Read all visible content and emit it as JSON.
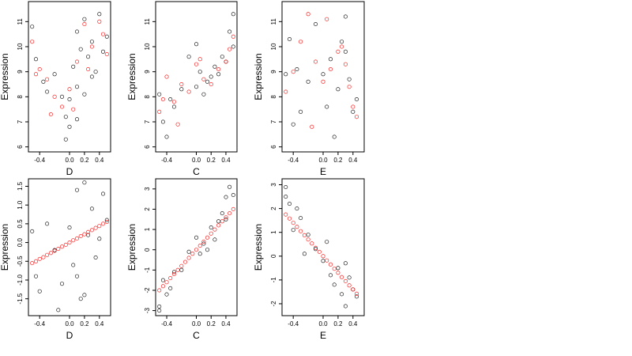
{
  "colors": {
    "observed": "#000000",
    "fitted": "#ff0000"
  },
  "chart_data": [
    {
      "type": "scatter",
      "xlabel": "D",
      "ylabel": "Expression",
      "xlim": [
        -0.55,
        0.55
      ],
      "ylim": [
        5.8,
        11.8
      ],
      "xticks": [
        -0.4,
        0.0,
        0.2,
        0.4
      ],
      "xtick_labels": [
        "-0.4",
        "0.0",
        "0.2",
        "0.4"
      ],
      "yticks": [
        6,
        7,
        8,
        9,
        10,
        11
      ],
      "ytick_labels": [
        "6",
        "7",
        "8",
        "9",
        "10",
        "11"
      ],
      "series": [
        {
          "role": "observed",
          "x": [
            -0.5,
            -0.45,
            -0.35,
            -0.3,
            -0.2,
            -0.1,
            -0.05,
            0.0,
            0.05,
            0.1,
            0.1,
            0.15,
            0.2,
            0.25,
            0.3,
            0.35,
            0.4,
            0.45,
            0.5,
            -0.05,
            0.0,
            0.1,
            0.2,
            0.3
          ],
          "y": [
            10.8,
            9.5,
            8.6,
            8.2,
            8.9,
            8.0,
            7.2,
            7.9,
            9.2,
            10.6,
            8.4,
            9.9,
            11.1,
            9.6,
            10.2,
            9.0,
            11.3,
            9.8,
            10.4,
            6.3,
            6.8,
            7.1,
            8.1,
            8.8
          ]
        },
        {
          "role": "fitted",
          "x": [
            -0.5,
            -0.4,
            -0.3,
            -0.2,
            -0.1,
            0.0,
            0.1,
            0.2,
            0.3,
            0.4,
            0.5,
            -0.45,
            -0.25,
            0.05,
            0.25,
            0.45
          ],
          "y": [
            10.2,
            9.1,
            8.7,
            8.0,
            7.6,
            8.3,
            9.4,
            10.9,
            10.0,
            11.0,
            9.7,
            8.9,
            7.3,
            7.5,
            9.1,
            10.5
          ]
        }
      ]
    },
    {
      "type": "scatter",
      "xlabel": "C",
      "ylabel": "Expression",
      "xlim": [
        -0.55,
        0.55
      ],
      "ylim": [
        5.8,
        11.8
      ],
      "xticks": [
        -0.4,
        0.0,
        0.2,
        0.4
      ],
      "xtick_labels": [
        "-0.4",
        "0.0",
        "0.2",
        "0.4"
      ],
      "yticks": [
        6,
        7,
        8,
        9,
        10,
        11
      ],
      "ytick_labels": [
        "6",
        "7",
        "8",
        "9",
        "10",
        "11"
      ],
      "series": [
        {
          "role": "observed",
          "x": [
            -0.5,
            -0.45,
            -0.4,
            -0.3,
            -0.2,
            -0.1,
            0.0,
            0.0,
            0.05,
            0.1,
            0.2,
            0.25,
            0.3,
            0.35,
            0.4,
            0.45,
            0.5,
            0.5,
            -0.35,
            0.15
          ],
          "y": [
            8.1,
            7.0,
            6.4,
            7.6,
            8.3,
            9.6,
            10.1,
            8.4,
            9.0,
            8.1,
            8.8,
            9.2,
            8.9,
            9.6,
            9.4,
            10.6,
            11.3,
            10.0,
            7.9,
            8.6
          ]
        },
        {
          "role": "fitted",
          "x": [
            -0.5,
            -0.45,
            -0.4,
            -0.3,
            -0.2,
            -0.1,
            0.0,
            0.1,
            0.2,
            0.3,
            0.4,
            0.45,
            0.5,
            -0.25,
            0.05
          ],
          "y": [
            7.4,
            7.9,
            8.8,
            7.8,
            8.5,
            8.2,
            9.3,
            8.7,
            8.5,
            9.1,
            9.4,
            9.9,
            10.4,
            6.9,
            9.5
          ]
        }
      ]
    },
    {
      "type": "scatter",
      "xlabel": "E",
      "ylabel": "Expression",
      "xlim": [
        -0.55,
        0.55
      ],
      "ylim": [
        5.8,
        11.8
      ],
      "xticks": [
        -0.4,
        0.0,
        0.2,
        0.4
      ],
      "xtick_labels": [
        "-0.4",
        "0.0",
        "0.2",
        "0.4"
      ],
      "yticks": [
        6,
        7,
        8,
        9,
        10,
        11
      ],
      "ytick_labels": [
        "6",
        "7",
        "8",
        "9",
        "10",
        "11"
      ],
      "series": [
        {
          "role": "observed",
          "x": [
            -0.5,
            -0.45,
            -0.35,
            -0.3,
            -0.2,
            -0.1,
            0.0,
            0.05,
            0.1,
            0.2,
            0.25,
            0.3,
            0.35,
            0.4,
            0.45,
            -0.4,
            0.15,
            0.3
          ],
          "y": [
            8.9,
            10.3,
            9.1,
            7.4,
            8.6,
            10.9,
            8.9,
            7.6,
            9.5,
            8.3,
            10.2,
            11.2,
            8.7,
            7.4,
            7.9,
            6.9,
            6.4,
            9.8
          ]
        },
        {
          "role": "fitted",
          "x": [
            -0.5,
            -0.4,
            -0.3,
            -0.2,
            -0.1,
            0.0,
            0.1,
            0.2,
            0.25,
            0.3,
            0.35,
            0.4,
            0.45,
            -0.15,
            0.05
          ],
          "y": [
            8.2,
            9.0,
            10.2,
            11.3,
            9.4,
            8.6,
            9.1,
            9.8,
            10.0,
            9.3,
            8.4,
            7.6,
            7.2,
            6.8,
            11.1
          ]
        }
      ]
    },
    {
      "type": "scatter",
      "xlabel": "D",
      "ylabel": "Expression",
      "xlim": [
        -0.55,
        0.55
      ],
      "ylim": [
        -1.95,
        1.7
      ],
      "xticks": [
        -0.4,
        0.0,
        0.2,
        0.4
      ],
      "xtick_labels": [
        "-0.4",
        "0.0",
        "0.2",
        "0.4"
      ],
      "yticks": [
        -1.5,
        -1.0,
        -0.5,
        0.0,
        0.5,
        1.0,
        1.5
      ],
      "ytick_labels": [
        "-1.5",
        "-1.0",
        "-0.5",
        "0.0",
        "0.5",
        "1.0",
        "1.5"
      ],
      "series": [
        {
          "role": "observed",
          "x": [
            -0.5,
            -0.45,
            -0.4,
            -0.3,
            -0.2,
            -0.1,
            0.0,
            0.05,
            0.1,
            0.15,
            0.2,
            0.25,
            0.3,
            0.35,
            0.4,
            0.45,
            0.5,
            -0.15,
            0.1,
            0.2
          ],
          "y": [
            0.3,
            -0.9,
            -1.3,
            0.5,
            -0.2,
            -1.1,
            0.4,
            -0.6,
            1.4,
            -1.5,
            1.6,
            0.2,
            0.9,
            -0.4,
            0.1,
            1.3,
            0.6,
            -1.8,
            -0.9,
            -1.4
          ]
        },
        {
          "role": "fitted",
          "x": [
            -0.5,
            -0.45,
            -0.4,
            -0.35,
            -0.3,
            -0.25,
            -0.2,
            -0.15,
            -0.1,
            -0.05,
            0.0,
            0.05,
            0.1,
            0.15,
            0.2,
            0.25,
            0.3,
            0.35,
            0.4,
            0.45,
            0.5
          ],
          "y": [
            -0.55,
            -0.5,
            -0.44,
            -0.39,
            -0.33,
            -0.28,
            -0.22,
            -0.17,
            -0.11,
            -0.06,
            0.0,
            0.06,
            0.11,
            0.17,
            0.22,
            0.28,
            0.33,
            0.39,
            0.44,
            0.5,
            0.55
          ]
        }
      ]
    },
    {
      "type": "scatter",
      "xlabel": "C",
      "ylabel": "Expression",
      "xlim": [
        -0.55,
        0.55
      ],
      "ylim": [
        -3.25,
        3.5
      ],
      "xticks": [
        -0.4,
        0.0,
        0.2,
        0.4
      ],
      "xtick_labels": [
        "-0.4",
        "0.0",
        "0.2",
        "0.4"
      ],
      "yticks": [
        -3,
        -2,
        -1,
        0,
        1,
        2,
        3
      ],
      "ytick_labels": [
        "-3",
        "-2",
        "-1",
        "0",
        "1",
        "2",
        "3"
      ],
      "series": [
        {
          "role": "observed",
          "x": [
            -0.5,
            -0.45,
            -0.4,
            -0.3,
            -0.2,
            -0.1,
            0.0,
            0.05,
            0.1,
            0.2,
            0.25,
            0.3,
            0.35,
            0.4,
            0.45,
            0.5,
            -0.5,
            -0.35,
            0.15,
            0.4
          ],
          "y": [
            -2.8,
            -1.5,
            -2.2,
            -1.1,
            -1.0,
            -0.1,
            0.6,
            -0.2,
            0.3,
            1.1,
            0.5,
            1.4,
            1.8,
            2.6,
            3.1,
            2.7,
            -3.0,
            -1.9,
            0.0,
            1.5
          ]
        },
        {
          "role": "fitted",
          "x": [
            -0.5,
            -0.45,
            -0.4,
            -0.35,
            -0.3,
            -0.25,
            -0.2,
            -0.15,
            -0.1,
            -0.05,
            0.0,
            0.05,
            0.1,
            0.15,
            0.2,
            0.25,
            0.3,
            0.35,
            0.4,
            0.45,
            0.5
          ],
          "y": [
            -2.0,
            -1.8,
            -1.6,
            -1.4,
            -1.2,
            -1.0,
            -0.8,
            -0.6,
            -0.4,
            -0.2,
            0.0,
            0.2,
            0.4,
            0.6,
            0.8,
            1.0,
            1.2,
            1.4,
            1.6,
            1.8,
            2.0
          ]
        }
      ]
    },
    {
      "type": "scatter",
      "xlabel": "E",
      "ylabel": "Expression",
      "xlim": [
        -0.55,
        0.55
      ],
      "ylim": [
        -2.5,
        3.25
      ],
      "xticks": [
        -0.4,
        0.0,
        0.2,
        0.4
      ],
      "xtick_labels": [
        "-0.4",
        "0.0",
        "0.2",
        "0.4"
      ],
      "yticks": [
        -2,
        -1,
        0,
        1,
        2,
        3
      ],
      "ytick_labels": [
        "-2",
        "-1",
        "0",
        "1",
        "2",
        "3"
      ],
      "series": [
        {
          "role": "observed",
          "x": [
            -0.5,
            -0.45,
            -0.4,
            -0.3,
            -0.2,
            -0.1,
            0.0,
            0.05,
            0.1,
            0.2,
            0.25,
            0.3,
            0.35,
            0.4,
            0.45,
            -0.5,
            -0.35,
            0.15,
            0.3,
            -0.25
          ],
          "y": [
            2.9,
            2.2,
            1.1,
            1.6,
            0.9,
            0.3,
            -0.2,
            0.6,
            -0.8,
            -0.5,
            -1.6,
            -2.1,
            -0.9,
            -1.4,
            -1.7,
            2.5,
            2.0,
            -1.2,
            -0.3,
            0.1
          ]
        },
        {
          "role": "fitted",
          "x": [
            -0.5,
            -0.45,
            -0.4,
            -0.35,
            -0.3,
            -0.25,
            -0.2,
            -0.15,
            -0.1,
            -0.05,
            0.0,
            0.05,
            0.1,
            0.15,
            0.2,
            0.25,
            0.3,
            0.35,
            0.4,
            0.45
          ],
          "y": [
            1.75,
            1.58,
            1.4,
            1.23,
            1.05,
            0.88,
            0.7,
            0.53,
            0.35,
            0.18,
            0.0,
            -0.18,
            -0.35,
            -0.53,
            -0.7,
            -0.88,
            -1.05,
            -1.23,
            -1.4,
            -1.58
          ]
        }
      ]
    }
  ]
}
